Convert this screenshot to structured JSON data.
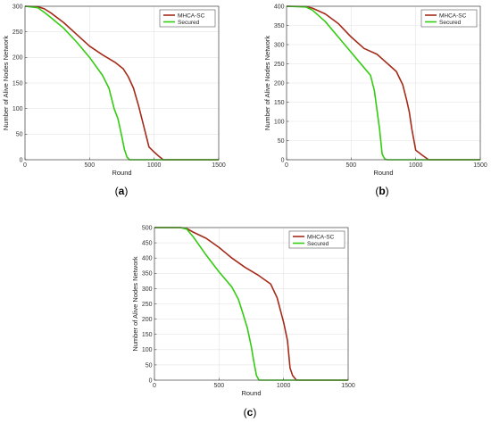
{
  "chart_data": [
    {
      "type": "line",
      "panel_label": "(a)",
      "xlabel": "Round",
      "ylabel": "Number of Alive Nodes Network",
      "xlim": [
        0,
        1500
      ],
      "ylim": [
        0,
        300
      ],
      "xticks": [
        "0",
        "500",
        "1000",
        "1500"
      ],
      "yticks": [
        "0",
        "50",
        "100",
        "150",
        "200",
        "250",
        "300"
      ],
      "grid": true,
      "legend": "top-right",
      "series": [
        {
          "name": "MHCA-SC",
          "color": "#a52a1a",
          "x": [
            0,
            100,
            150,
            200,
            300,
            400,
            500,
            600,
            700,
            760,
            800,
            840,
            880,
            920,
            960,
            1000,
            1040,
            1070,
            1500
          ],
          "y": [
            300,
            299,
            295,
            287,
            268,
            245,
            222,
            205,
            190,
            178,
            162,
            140,
            105,
            65,
            25,
            15,
            6,
            0,
            0
          ]
        },
        {
          "name": "Secured",
          "color": "#33cc11",
          "x": [
            0,
            100,
            150,
            200,
            300,
            400,
            500,
            600,
            650,
            690,
            720,
            750,
            770,
            790,
            810,
            1500
          ],
          "y": [
            300,
            297,
            288,
            278,
            257,
            230,
            200,
            165,
            140,
            100,
            80,
            45,
            20,
            5,
            0,
            0
          ]
        }
      ]
    },
    {
      "type": "line",
      "panel_label": "(b)",
      "xlabel": "Round",
      "ylabel": "Number of Alive Nodes Network",
      "xlim": [
        0,
        1500
      ],
      "ylim": [
        0,
        400
      ],
      "xticks": [
        "0",
        "500",
        "1000",
        "1500"
      ],
      "yticks": [
        "0",
        "50",
        "100",
        "150",
        "200",
        "250",
        "300",
        "350",
        "400"
      ],
      "grid": true,
      "legend": "top-right",
      "series": [
        {
          "name": "MHCA-SC",
          "color": "#a52a1a",
          "x": [
            0,
            150,
            200,
            300,
            400,
            500,
            600,
            700,
            750,
            800,
            850,
            900,
            930,
            950,
            970,
            1000,
            1050,
            1100,
            1500
          ],
          "y": [
            400,
            399,
            395,
            380,
            355,
            320,
            290,
            275,
            260,
            245,
            230,
            195,
            155,
            125,
            80,
            25,
            12,
            0,
            0
          ]
        },
        {
          "name": "Secured",
          "color": "#33cc11",
          "x": [
            0,
            150,
            200,
            300,
            400,
            500,
            600,
            650,
            680,
            700,
            720,
            740,
            760,
            780,
            1500
          ],
          "y": [
            400,
            398,
            390,
            360,
            320,
            280,
            240,
            220,
            180,
            130,
            80,
            15,
            2,
            0,
            0
          ]
        }
      ]
    },
    {
      "type": "line",
      "panel_label": "(c)",
      "xlabel": "Round",
      "ylabel": "Number of Alive Nodes Network",
      "xlim": [
        0,
        1500
      ],
      "ylim": [
        0,
        500
      ],
      "xticks": [
        "0",
        "500",
        "1000",
        "1500"
      ],
      "yticks": [
        "0",
        "50",
        "100",
        "150",
        "200",
        "250",
        "300",
        "350",
        "400",
        "450",
        "500"
      ],
      "grid": true,
      "legend": "top-right",
      "series": [
        {
          "name": "MHCA-SC",
          "color": "#a52a1a",
          "x": [
            0,
            200,
            250,
            300,
            400,
            500,
            600,
            700,
            800,
            900,
            950,
            1000,
            1030,
            1050,
            1070,
            1100,
            1500
          ],
          "y": [
            500,
            500,
            497,
            485,
            465,
            435,
            400,
            370,
            345,
            315,
            270,
            190,
            130,
            40,
            15,
            0,
            0
          ]
        },
        {
          "name": "Secured",
          "color": "#33cc11",
          "x": [
            0,
            200,
            250,
            300,
            400,
            500,
            600,
            650,
            680,
            720,
            750,
            770,
            790,
            810,
            830,
            1500
          ],
          "y": [
            500,
            500,
            495,
            470,
            410,
            355,
            305,
            265,
            225,
            170,
            110,
            60,
            15,
            0,
            0,
            0
          ]
        }
      ]
    }
  ]
}
